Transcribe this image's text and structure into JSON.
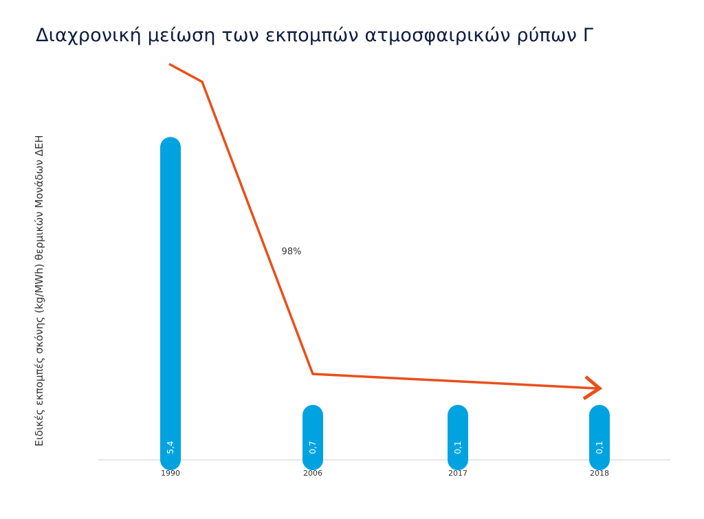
{
  "chart_data": {
    "type": "bar",
    "title": "Διαχρονική μείωση των εκπομπών ατμοσφαιρικών ρύπων Γ",
    "ylabel": "Ειδικές εκπομπές σκόνης (kg/MWh) θερμικών Μονάδων ΔΕΗ",
    "xlabel": "",
    "categories": [
      "1990",
      "2006",
      "2017",
      "2018"
    ],
    "values": [
      5.4,
      0.7,
      0.1,
      0.1
    ],
    "value_labels": [
      "5,4",
      "0,7",
      "0,1",
      "0,1"
    ],
    "ylim": [
      0,
      6.0
    ],
    "bar_color": "#00a3e0",
    "trend_color": "#e8501a",
    "annotation": "98%",
    "grid": false
  }
}
